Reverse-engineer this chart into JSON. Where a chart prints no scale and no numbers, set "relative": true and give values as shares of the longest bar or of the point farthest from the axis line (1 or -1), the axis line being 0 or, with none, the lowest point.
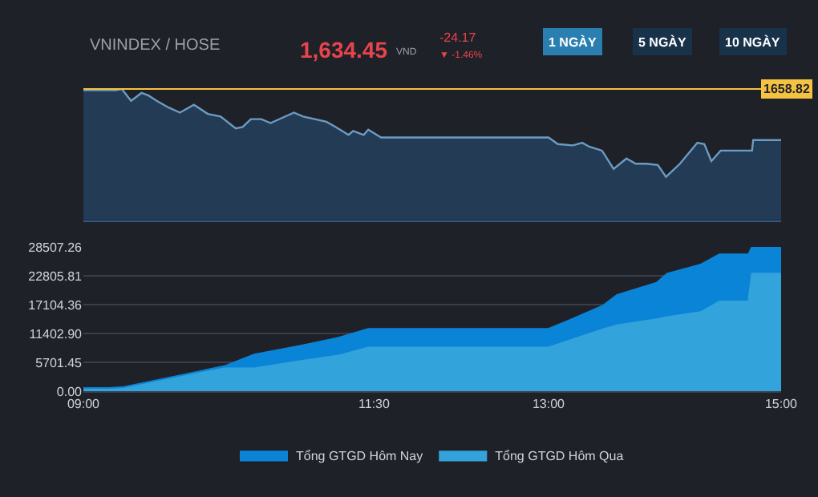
{
  "chart_data": [
    {
      "type": "area",
      "relative": true,
      "annotations": [
        "VNINDEX / HOSE",
        "1,634.45",
        "VND",
        "-24.17",
        "▼ -1.46%",
        "1 NGÀY",
        "5 NGÀY",
        "10 NGÀY",
        "1658.82"
      ],
      "x": [
        9.0,
        9.28,
        9.33,
        9.41,
        9.5,
        9.56,
        9.63,
        9.73,
        9.83,
        9.95,
        10.07,
        10.18,
        10.31,
        10.37,
        10.44,
        10.53,
        10.61,
        10.81,
        10.89,
        11.09,
        11.17,
        11.28,
        11.32,
        11.41,
        11.45,
        11.56,
        13.0,
        13.08,
        13.21,
        13.29,
        13.35,
        13.46,
        13.56,
        13.67,
        13.75,
        13.84,
        13.94,
        14.01,
        14.13,
        14.28,
        14.34,
        14.4,
        14.48,
        14.75,
        14.76,
        15.0
      ],
      "series": [
        {
          "color": "#6b9cc4",
          "values": [
            0.99,
            0.99,
            1.0,
            0.91,
            0.97,
            0.95,
            0.91,
            0.86,
            0.82,
            0.88,
            0.81,
            0.79,
            0.7,
            0.71,
            0.77,
            0.77,
            0.74,
            0.82,
            0.79,
            0.75,
            0.71,
            0.65,
            0.68,
            0.65,
            0.69,
            0.63,
            0.63,
            0.58,
            0.57,
            0.59,
            0.56,
            0.53,
            0.39,
            0.47,
            0.43,
            0.43,
            0.42,
            0.33,
            0.43,
            0.59,
            0.58,
            0.45,
            0.53,
            0.53,
            0.61,
            0.61
          ]
        }
      ],
      "ref_lines": [
        {
          "axis": "y",
          "value": 1,
          "color": "#f5c342"
        }
      ],
      "xlim": [
        9,
        15
      ],
      "tick_labels": false,
      "grid": false,
      "legend": false
    },
    {
      "type": "area",
      "legend": "bottom",
      "grid": "y",
      "x": [
        9.0,
        9.22,
        9.35,
        10.21,
        10.47,
        10.86,
        11.19,
        11.45,
        11.54,
        13.0,
        13.18,
        13.47,
        13.59,
        13.93,
        14.02,
        14.31,
        14.47,
        14.72,
        14.75,
        15.0
      ],
      "series": [
        {
          "name": "Tổng GTGD Hôm Nay",
          "color": "#0a84d6",
          "values": [
            600,
            600,
            800,
            4900,
            7200,
            8900,
            10500,
            12300,
            12300,
            12300,
            14000,
            16900,
            19000,
            21400,
            23200,
            25000,
            27000,
            27000,
            28500,
            28500
          ]
        },
        {
          "name": "Tổng GTGD Hôm Qua",
          "color": "#33a3dc",
          "values": [
            300,
            300,
            500,
            4500,
            4500,
            5900,
            7000,
            8600,
            8600,
            8600,
            10000,
            12200,
            13000,
            14200,
            14600,
            15600,
            17700,
            17700,
            23200,
            23200
          ]
        }
      ],
      "xlim": [
        9,
        15
      ],
      "xticks": [
        {
          "value": 9,
          "label": "09:00"
        },
        {
          "value": 11.5,
          "label": "11:30"
        },
        {
          "value": 13,
          "label": "13:00"
        },
        {
          "value": 15,
          "label": "15:00"
        }
      ],
      "ylim": [
        0,
        28507.26
      ],
      "yticks": [
        {
          "value": 0,
          "label": "0.00"
        },
        {
          "value": 5701.45,
          "label": "5701.45"
        },
        {
          "value": 11402.9,
          "label": "11402.90"
        },
        {
          "value": 17104.36,
          "label": "17104.36"
        },
        {
          "value": 22805.81,
          "label": "22805.81"
        },
        {
          "value": 28507.26,
          "label": "28507.26"
        }
      ]
    }
  ]
}
